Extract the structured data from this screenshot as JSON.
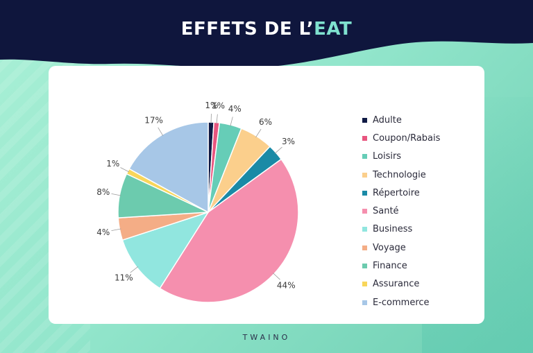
{
  "title": {
    "main": "EFFETS DE L’",
    "accent": "EAT"
  },
  "brand": "TWAINO",
  "colors": {
    "header": "#0f163d",
    "accent": "#7fe1cf"
  },
  "chart_data": {
    "type": "pie",
    "title": "",
    "legend_position": "right",
    "slices": [
      {
        "label": "Adulte",
        "value": 1,
        "display": "1%",
        "color": "#101a45"
      },
      {
        "label": "Coupon/Rabais",
        "value": 1,
        "display": "1%",
        "color": "#e8557f"
      },
      {
        "label": "Loisirs",
        "value": 4,
        "display": "4%",
        "color": "#66cdb7"
      },
      {
        "label": "Technologie",
        "value": 6,
        "display": "6%",
        "color": "#fbcf8c"
      },
      {
        "label": "Répertoire",
        "value": 3,
        "display": "3%",
        "color": "#1a8aa6"
      },
      {
        "label": "Santé",
        "value": 44,
        "display": "44%",
        "color": "#f58fae"
      },
      {
        "label": "Business",
        "value": 11,
        "display": "11%",
        "color": "#91e6df"
      },
      {
        "label": "Voyage",
        "value": 4,
        "display": "4%",
        "color": "#f4ad86"
      },
      {
        "label": "Finance",
        "value": 8,
        "display": "8%",
        "color": "#6ccbae"
      },
      {
        "label": "Assurance",
        "value": 1,
        "display": "1%",
        "color": "#f8d65a"
      },
      {
        "label": "E-commerce",
        "value": 17,
        "display": "17%",
        "color": "#a7c7e7"
      }
    ]
  }
}
